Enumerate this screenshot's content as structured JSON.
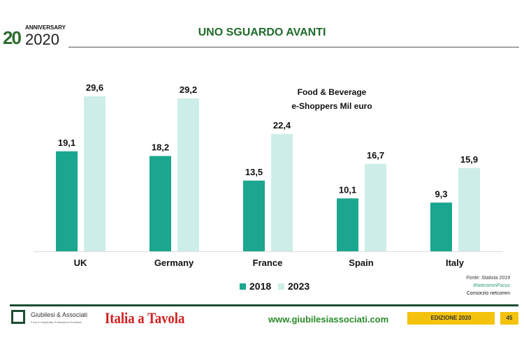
{
  "header": {
    "logo_text": "ANNIVERSARY 2020",
    "title": "UNO SGUARDO AVANTI"
  },
  "chart_data": {
    "type": "bar",
    "title": "Food & Beverage",
    "subtitle": "e-Shoppers Mil euro",
    "categories": [
      "UK",
      "Germany",
      "France",
      "Spain",
      "Italy"
    ],
    "series": [
      {
        "name": "2018",
        "values": [
          19.1,
          18.2,
          13.5,
          10.1,
          9.3
        ],
        "labels": [
          "19,1",
          "18,2",
          "13,5",
          "10,1",
          "9,3"
        ],
        "color": "#1aa68f"
      },
      {
        "name": "2023",
        "values": [
          29.6,
          29.2,
          22.4,
          16.7,
          15.9
        ],
        "labels": [
          "29,6",
          "29,2",
          "22,4",
          "16,7",
          "15,9"
        ],
        "color": "#cdeee8"
      }
    ],
    "ylim": [
      0,
      30
    ],
    "grid": false,
    "legend": "bottom"
  },
  "source": {
    "line1": "Fonte: Statista 2019",
    "line2": "#NetcommFocus",
    "line3": "Consorzio netcomm"
  },
  "footer": {
    "company": "Giubilesi & Associati",
    "tagline": "Food & Hospitality Professional Solutions",
    "brand": "Italia a Tavola",
    "url": "www.giubilesiassociati.com",
    "edition": "EDIZIONE 2020",
    "page": "45"
  }
}
